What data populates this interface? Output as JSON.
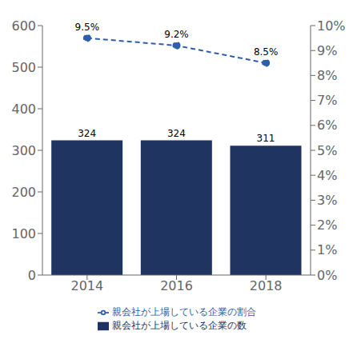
{
  "chart_data": {
    "type": "bar",
    "categories": [
      "2014",
      "2016",
      "2018"
    ],
    "series": [
      {
        "name": "親会社が上場している企業の数",
        "type": "bar",
        "color": "#1f3461",
        "values": [
          324,
          324,
          311
        ]
      },
      {
        "name": "親会社が上場している企業の割合",
        "type": "line",
        "axis": "y2",
        "color": "#2e5eaa",
        "values": [
          9.5,
          9.2,
          8.5
        ],
        "value_labels": [
          "9.5%",
          "9.2%",
          "8.5%"
        ],
        "marker": "circle",
        "line_style": "dashed"
      }
    ],
    "ylim": [
      0,
      600
    ],
    "yticks": [
      0,
      100,
      200,
      300,
      400,
      500,
      600
    ],
    "y2lim": [
      0,
      10
    ],
    "y2ticks": [
      {
        "value": 0,
        "label": "0%"
      },
      {
        "value": 1,
        "label": "1%"
      },
      {
        "value": 2,
        "label": "2%"
      },
      {
        "value": 3,
        "label": "3%"
      },
      {
        "value": 4,
        "label": "4%"
      },
      {
        "value": 5,
        "label": "5%"
      },
      {
        "value": 6,
        "label": "6%"
      },
      {
        "value": 7,
        "label": "7%"
      },
      {
        "value": 8,
        "label": "8%"
      },
      {
        "value": 9,
        "label": "9%"
      },
      {
        "value": 10,
        "label": "10%"
      }
    ],
    "data_labels": true,
    "legend": "bottom",
    "grid": false
  }
}
